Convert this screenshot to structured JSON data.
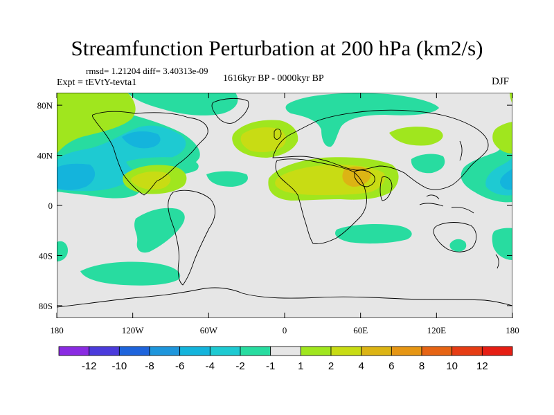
{
  "title": "Streamfunction Perturbation at 200 hPa (km2/s)",
  "stats_line": "rmsd= 1.21204 diff= 3.40313e-09",
  "experiment": "Expt = tEVtY-tevta1",
  "period": "1616kyr BP - 0000kyr BP",
  "season": "DJF",
  "map": {
    "lon_range": [
      -180,
      180
    ],
    "lat_range": [
      -90,
      90
    ],
    "background_color": "#e6e6e6",
    "lat_ticks": [
      "80N",
      "40N",
      "0",
      "40S",
      "80S"
    ],
    "lat_tick_values": [
      80,
      40,
      0,
      -40,
      -80
    ],
    "lon_ticks": [
      "180",
      "120W",
      "60W",
      "0",
      "60E",
      "120E",
      "180"
    ],
    "lon_tick_values": [
      -180,
      -120,
      -60,
      0,
      60,
      120,
      180
    ]
  },
  "colorbar": {
    "colors": [
      "#8a2be2",
      "#4b3bdc",
      "#1e64dc",
      "#1e96dc",
      "#14b4dc",
      "#1ecad2",
      "#28dca0",
      "#e6e6e6",
      "#a0e61e",
      "#c8dc14",
      "#dcb414",
      "#e69614",
      "#e66414",
      "#e63c14",
      "#e61e14"
    ],
    "labels": [
      "-12",
      "-10",
      "-8",
      "-6",
      "-4",
      "-2",
      "-1",
      "1",
      "2",
      "4",
      "6",
      "8",
      "10",
      "12"
    ]
  }
}
